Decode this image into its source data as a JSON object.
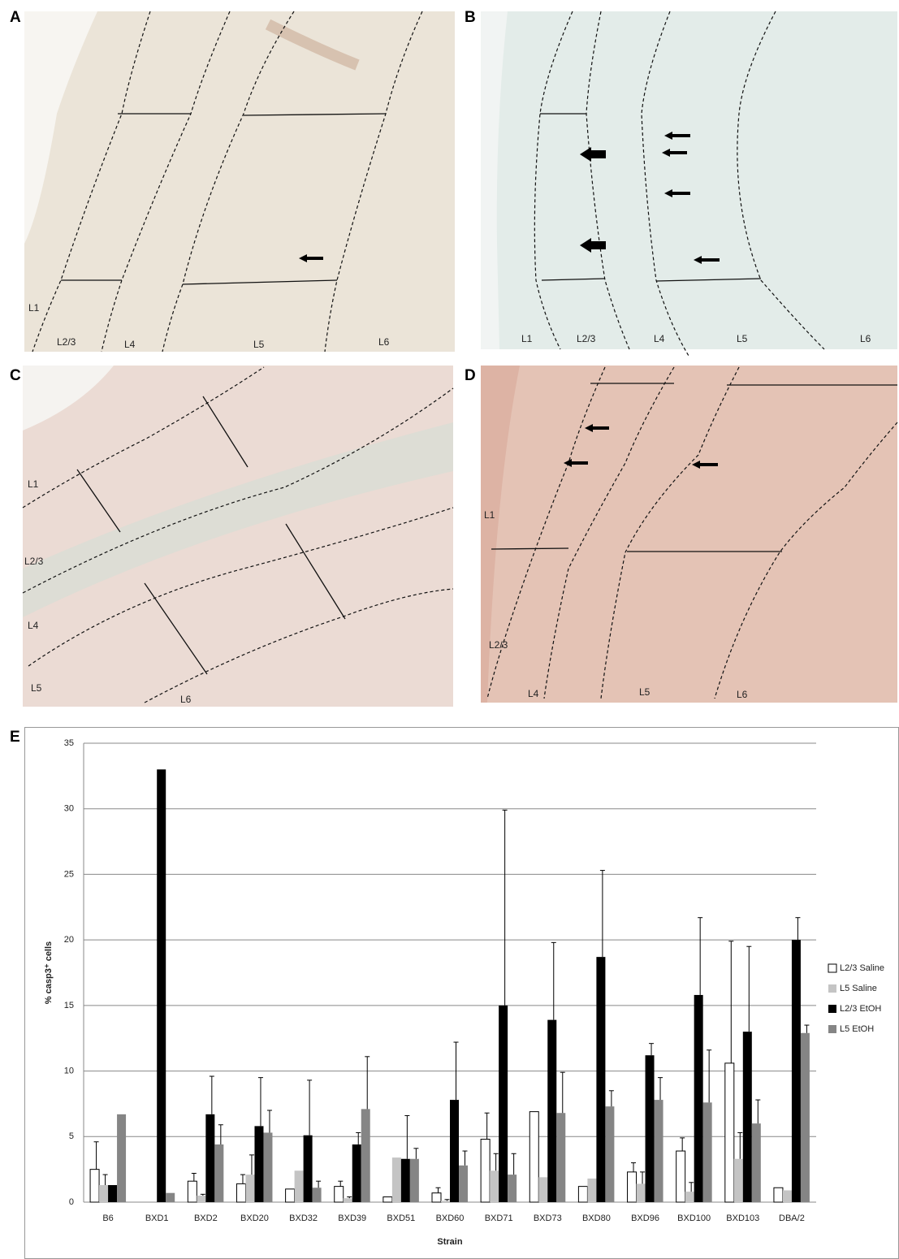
{
  "panels": [
    {
      "label": "A",
      "layers": [
        "L1",
        "L2/3",
        "L4",
        "L5",
        "L6"
      ]
    },
    {
      "label": "B",
      "layers": [
        "L1",
        "L2/3",
        "L4",
        "L5",
        "L6"
      ]
    },
    {
      "label": "C",
      "layers": [
        "L1",
        "L2/3",
        "L4",
        "L5",
        "L6"
      ]
    },
    {
      "label": "D",
      "layers": [
        "L1",
        "L2/3",
        "L4",
        "L5",
        "L6"
      ]
    },
    {
      "label": "E"
    }
  ],
  "chart_data": {
    "type": "bar",
    "x_label": "Strain",
    "y_label": "% casp3⁺ cells",
    "categories": [
      "B6",
      "BXD1",
      "BXD2",
      "BXD20",
      "BXD32",
      "BXD39",
      "BXD51",
      "BXD60",
      "BXD71",
      "BXD73",
      "BXD80",
      "BXD96",
      "BXD100",
      "BXD103",
      "DBA/2"
    ],
    "series": [
      {
        "name": "L2/3 Saline",
        "color": "#ffffff",
        "values": [
          2.5,
          0,
          1.6,
          1.4,
          1.0,
          1.2,
          0.4,
          0.7,
          4.8,
          6.9,
          1.2,
          2.3,
          3.9,
          10.6,
          1.1
        ],
        "errors": [
          2.1,
          null,
          0.6,
          0.7,
          null,
          0.4,
          null,
          0.4,
          2.0,
          null,
          null,
          0.7,
          1.0,
          9.3,
          null
        ]
      },
      {
        "name": "L5 Saline",
        "color": "#c4c4c4",
        "values": [
          1.3,
          0,
          0.5,
          2.1,
          2.4,
          0.3,
          3.4,
          0.1,
          2.4,
          1.9,
          1.8,
          1.4,
          0.8,
          3.3,
          0.9
        ],
        "errors": [
          0.8,
          null,
          0.1,
          1.5,
          null,
          0.1,
          null,
          0.1,
          1.3,
          null,
          null,
          0.9,
          0.7,
          2.0,
          null
        ]
      },
      {
        "name": "L2/3 EtOH",
        "color": "#000000",
        "values": [
          1.3,
          33,
          6.7,
          5.8,
          5.1,
          4.4,
          3.3,
          7.8,
          15,
          13.9,
          18.7,
          11.2,
          15.8,
          13.0,
          20
        ],
        "errors": [
          null,
          null,
          2.9,
          3.7,
          4.2,
          0.9,
          3.3,
          4.4,
          14.9,
          5.9,
          6.6,
          0.9,
          5.9,
          6.5,
          1.7
        ]
      },
      {
        "name": "L5 EtOH",
        "color": "#858585",
        "values": [
          6.7,
          0.7,
          4.4,
          5.3,
          1.1,
          7.1,
          3.3,
          2.8,
          2.1,
          6.8,
          7.3,
          7.8,
          7.6,
          6.0,
          12.9
        ],
        "errors": [
          null,
          null,
          1.5,
          1.7,
          0.5,
          4.0,
          0.8,
          1.1,
          1.6,
          3.1,
          1.2,
          1.7,
          4.0,
          1.8,
          0.6
        ]
      }
    ],
    "ylim": [
      0,
      35
    ],
    "yticks": [
      0,
      5,
      10,
      15,
      20,
      25,
      30,
      35
    ],
    "grid": true,
    "legend": "right"
  }
}
